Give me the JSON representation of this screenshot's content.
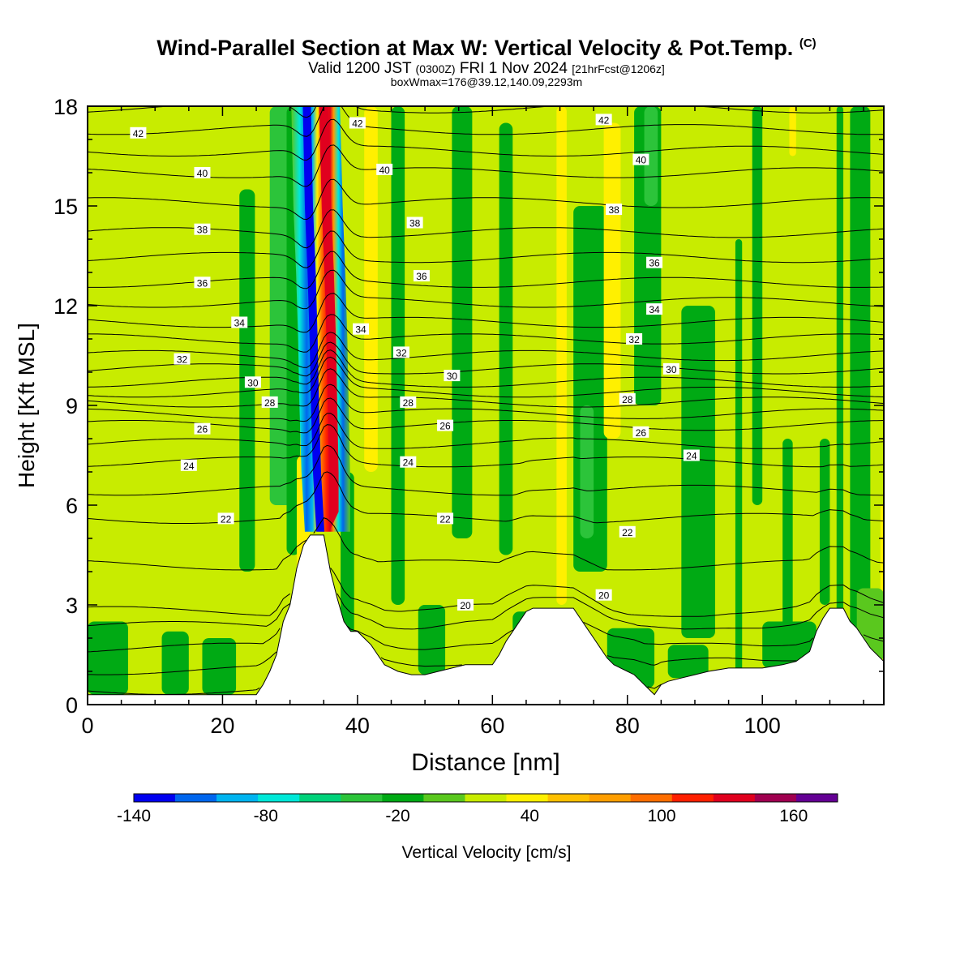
{
  "header": {
    "title": "Wind-Parallel Section at Max W: Vertical Velocity & Pot.Temp.",
    "copyright": "(C)",
    "valid_prefix": "Valid 1200 JST",
    "valid_utc": "(0300Z)",
    "valid_date": "FRI 1 Nov 2024",
    "forecast": "[21hrFcst@1206z]",
    "boxinfo": "boxWmax=176@39.12,140.09,2293m"
  },
  "chart_data": {
    "type": "heatmap",
    "xlabel": "Distance [nm]",
    "ylabel": "Height [Kft MSL]",
    "xlim": [
      0,
      118
    ],
    "ylim": [
      0,
      18
    ],
    "x_ticks": [
      0,
      20,
      40,
      60,
      80,
      100
    ],
    "y_ticks": [
      0,
      3,
      6,
      9,
      12,
      15,
      18
    ],
    "colorbar": {
      "label": "Vertical Velocity [cm/s]",
      "tick_labels": [
        "-140",
        "-80",
        "-20",
        "40",
        "100",
        "160"
      ],
      "tick_values": [
        -140,
        -80,
        -20,
        40,
        100,
        160
      ],
      "levels": [
        -140,
        -120,
        -100,
        -80,
        -60,
        -40,
        -20,
        0,
        20,
        40,
        60,
        80,
        100,
        120,
        140,
        160,
        180
      ],
      "colors": [
        "#0000f0",
        "#0066ee",
        "#00b4f0",
        "#00e8d8",
        "#00d27a",
        "#2cc43a",
        "#00aa14",
        "#5ac81e",
        "#c8ec00",
        "#fff000",
        "#ffc000",
        "#ff9e00",
        "#ff6e00",
        "#ff2000",
        "#e0001e",
        "#a00050",
        "#640094"
      ]
    },
    "background_color": "#c8ec00",
    "terrain_color": "#ffffff",
    "terrain": [
      [
        0,
        0.3
      ],
      [
        25,
        0.3
      ],
      [
        26,
        0.6
      ],
      [
        27,
        1
      ],
      [
        28,
        1.5
      ],
      [
        29,
        2.5
      ],
      [
        30,
        3
      ],
      [
        31,
        4.1
      ],
      [
        32,
        4.8
      ],
      [
        33,
        5.1
      ],
      [
        35,
        5.1
      ],
      [
        36,
        4
      ],
      [
        37,
        3.2
      ],
      [
        38,
        2.5
      ],
      [
        39,
        2.2
      ],
      [
        40,
        2.2
      ],
      [
        41,
        2
      ],
      [
        42,
        1.8
      ],
      [
        43,
        1.5
      ],
      [
        44,
        1.2
      ],
      [
        46,
        1
      ],
      [
        48,
        0.9
      ],
      [
        50,
        0.9
      ],
      [
        52,
        1
      ],
      [
        54,
        1.1
      ],
      [
        56,
        1.2
      ],
      [
        58,
        1.2
      ],
      [
        60,
        1.2
      ],
      [
        61,
        1.5
      ],
      [
        62,
        1.9
      ],
      [
        63,
        2.2
      ],
      [
        64,
        2.5
      ],
      [
        65,
        2.8
      ],
      [
        66,
        2.9
      ],
      [
        70,
        2.9
      ],
      [
        72,
        2.9
      ],
      [
        73,
        2.6
      ],
      [
        74,
        2.3
      ],
      [
        75,
        2
      ],
      [
        76,
        1.7
      ],
      [
        77,
        1.4
      ],
      [
        78,
        1.2
      ],
      [
        79,
        1.1
      ],
      [
        80,
        1
      ],
      [
        81,
        0.9
      ],
      [
        82,
        0.7
      ],
      [
        83,
        0.5
      ],
      [
        84,
        0.3
      ],
      [
        85,
        0.6
      ],
      [
        86,
        0.7
      ],
      [
        88,
        0.8
      ],
      [
        90,
        0.9
      ],
      [
        92,
        1
      ],
      [
        95,
        1.1
      ],
      [
        100,
        1.1
      ],
      [
        103,
        1.2
      ],
      [
        105,
        1.3
      ],
      [
        107,
        1.6
      ],
      [
        108,
        2.2
      ],
      [
        109,
        2.6
      ],
      [
        110,
        2.9
      ],
      [
        112,
        2.9
      ],
      [
        113,
        2.5
      ],
      [
        114,
        2.3
      ],
      [
        115,
        2
      ],
      [
        116,
        1.7
      ],
      [
        117,
        1.5
      ],
      [
        118,
        1.3
      ]
    ],
    "updraft_axis": [
      [
        36.5,
        5.2
      ],
      [
        36.5,
        7
      ],
      [
        36.3,
        9
      ],
      [
        36.1,
        11
      ],
      [
        35.8,
        13
      ],
      [
        35.4,
        15
      ],
      [
        35,
        18
      ]
    ],
    "downdraft_axis": [
      [
        34.5,
        5.2
      ],
      [
        34,
        7
      ],
      [
        33.7,
        9
      ],
      [
        33.5,
        11
      ],
      [
        33.2,
        13
      ],
      [
        32.8,
        15
      ],
      [
        32.5,
        18
      ]
    ],
    "contour_series": [
      {
        "value": 20,
        "y": 2.8
      },
      {
        "value": 22,
        "y": 5.6
      },
      {
        "value": 24,
        "y": 7.3
      },
      {
        "value": 26,
        "y": 8.4
      },
      {
        "value": 28,
        "y": 9.1
      },
      {
        "value": 30,
        "y": 9.7
      },
      {
        "value": 32,
        "y": 10.5
      },
      {
        "value": 34,
        "y": 11.5
      },
      {
        "value": 36,
        "y": 12.7
      },
      {
        "value": 38,
        "y": 14.2
      },
      {
        "value": 40,
        "y": 16.0
      },
      {
        "value": 42,
        "y": 17.3
      }
    ],
    "contour_labels": [
      {
        "text": "42",
        "x": 7.5,
        "y": 17.2
      },
      {
        "text": "42",
        "x": 40,
        "y": 17.5
      },
      {
        "text": "42",
        "x": 76.5,
        "y": 17.6
      },
      {
        "text": "40",
        "x": 17,
        "y": 16.0
      },
      {
        "text": "40",
        "x": 44,
        "y": 16.1
      },
      {
        "text": "40",
        "x": 82,
        "y": 16.4
      },
      {
        "text": "38",
        "x": 17,
        "y": 14.3
      },
      {
        "text": "38",
        "x": 48.5,
        "y": 14.5
      },
      {
        "text": "38",
        "x": 78,
        "y": 14.9
      },
      {
        "text": "36",
        "x": 17,
        "y": 12.7
      },
      {
        "text": "36",
        "x": 49.5,
        "y": 12.9
      },
      {
        "text": "36",
        "x": 84,
        "y": 13.3
      },
      {
        "text": "34",
        "x": 22.5,
        "y": 11.5
      },
      {
        "text": "34",
        "x": 40.5,
        "y": 11.3
      },
      {
        "text": "34",
        "x": 84,
        "y": 11.9
      },
      {
        "text": "32",
        "x": 14,
        "y": 10.4
      },
      {
        "text": "32",
        "x": 46.5,
        "y": 10.6
      },
      {
        "text": "32",
        "x": 81,
        "y": 11.0
      },
      {
        "text": "30",
        "x": 24.5,
        "y": 9.7
      },
      {
        "text": "30",
        "x": 54,
        "y": 9.9
      },
      {
        "text": "30",
        "x": 86.5,
        "y": 10.1
      },
      {
        "text": "28",
        "x": 27,
        "y": 9.1
      },
      {
        "text": "28",
        "x": 47.5,
        "y": 9.1
      },
      {
        "text": "28",
        "x": 80,
        "y": 9.2
      },
      {
        "text": "26",
        "x": 17,
        "y": 8.3
      },
      {
        "text": "26",
        "x": 53,
        "y": 8.4
      },
      {
        "text": "26",
        "x": 82,
        "y": 8.2
      },
      {
        "text": "24",
        "x": 15,
        "y": 7.2
      },
      {
        "text": "24",
        "x": 47.5,
        "y": 7.3
      },
      {
        "text": "24",
        "x": 89.5,
        "y": 7.5
      },
      {
        "text": "22",
        "x": 20.5,
        "y": 5.6
      },
      {
        "text": "22",
        "x": 53,
        "y": 5.6
      },
      {
        "text": "22",
        "x": 80,
        "y": 5.2
      },
      {
        "text": "20",
        "x": 56,
        "y": 3.0
      },
      {
        "text": "20",
        "x": 76.5,
        "y": 3.3
      }
    ]
  }
}
